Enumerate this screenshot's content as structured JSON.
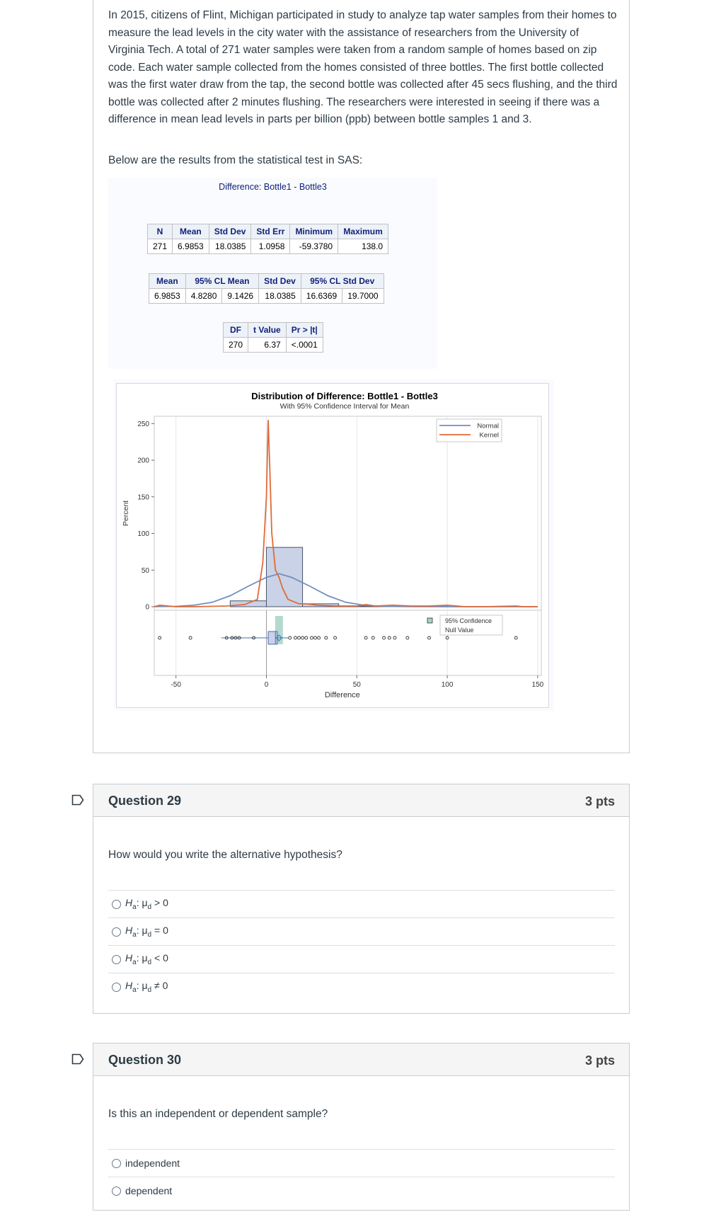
{
  "context": {
    "paragraph": "In 2015, citizens of Flint, Michigan participated in study to analyze tap water samples from their homes to measure the lead levels in the city water with the assistance of researchers from the University of Virginia Tech. A total of 271 water samples were taken from a random sample of homes based on zip code. Each water sample collected from the homes consisted of three bottles. The first bottle collected was the first water draw from the tap, the second bottle was collected after 45 secs flushing, and the third bottle was collected after 2 minutes flushing. The researchers were interested in seeing if there was a difference in mean lead levels in parts per billion (ppb) between bottle samples 1 and 3.",
    "lead_in": "Below are the results from the statistical test in SAS:"
  },
  "sas_output": {
    "title": "Difference: Bottle1 - Bottle3",
    "stats_table": {
      "headers": [
        "N",
        "Mean",
        "Std Dev",
        "Std Err",
        "Minimum",
        "Maximum"
      ],
      "row": [
        "271",
        "6.9853",
        "18.0385",
        "1.0958",
        "-59.3780",
        "138.0"
      ]
    },
    "ci_table": {
      "headers": [
        "Mean",
        "95% CL Mean",
        "Std Dev",
        "95% CL Std Dev"
      ],
      "row": [
        "6.9853",
        "4.8280",
        "9.1426",
        "18.0385",
        "16.6369",
        "19.7000"
      ]
    },
    "ttest_table": {
      "headers": [
        "DF",
        "t Value",
        "Pr > |t|"
      ],
      "row": [
        "270",
        "6.37",
        "<.0001"
      ]
    }
  },
  "chart_data": {
    "type": "bar",
    "title": "Distribution of Difference: Bottle1 - Bottle3",
    "subtitle": "With 95% Confidence Interval for Mean",
    "xlabel": "Difference",
    "ylabel": "Percent",
    "xlim": [
      -62,
      152
    ],
    "ylim": [
      0,
      260
    ],
    "x_ticks": [
      -50,
      0,
      50,
      100,
      150
    ],
    "y_ticks": [
      0,
      50,
      100,
      150,
      200,
      250
    ],
    "bins": [
      {
        "x0": -20,
        "x1": 0,
        "value": 8
      },
      {
        "x0": 0,
        "x1": 20,
        "value": 81
      },
      {
        "x0": 20,
        "x1": 40,
        "value": 4
      },
      {
        "x0": 40,
        "x1": 60,
        "value": 1
      },
      {
        "x0": 60,
        "x1": 80,
        "value": 0.5
      },
      {
        "x0": 80,
        "x1": 100,
        "value": 0.5
      }
    ],
    "series": [
      {
        "name": "Normal",
        "color": "#6f8fc0",
        "points": [
          [
            -62,
            0.2
          ],
          [
            -50,
            0.5
          ],
          [
            -40,
            2
          ],
          [
            -30,
            6
          ],
          [
            -20,
            15
          ],
          [
            -10,
            28
          ],
          [
            0,
            40
          ],
          [
            7,
            45
          ],
          [
            14,
            40
          ],
          [
            24,
            28
          ],
          [
            34,
            15
          ],
          [
            44,
            6
          ],
          [
            54,
            2
          ],
          [
            64,
            0.5
          ],
          [
            80,
            0.1
          ],
          [
            100,
            0
          ],
          [
            150,
            0
          ]
        ]
      },
      {
        "name": "Kernel",
        "color": "#e06a3a",
        "points": [
          [
            -62,
            0
          ],
          [
            -59,
            2
          ],
          [
            -50,
            0
          ],
          [
            -40,
            0
          ],
          [
            -22,
            1
          ],
          [
            -12,
            3
          ],
          [
            -5,
            10
          ],
          [
            -2,
            60
          ],
          [
            0,
            150
          ],
          [
            1,
            255
          ],
          [
            2,
            180
          ],
          [
            3,
            100
          ],
          [
            5,
            50
          ],
          [
            7,
            40
          ],
          [
            9,
            25
          ],
          [
            12,
            10
          ],
          [
            15,
            7
          ],
          [
            18,
            4
          ],
          [
            22,
            4
          ],
          [
            28,
            2
          ],
          [
            38,
            1
          ],
          [
            50,
            1
          ],
          [
            55,
            3
          ],
          [
            60,
            1
          ],
          [
            70,
            2
          ],
          [
            80,
            1
          ],
          [
            90,
            1
          ],
          [
            100,
            2
          ],
          [
            110,
            0
          ],
          [
            120,
            0
          ],
          [
            138,
            1
          ],
          [
            142,
            0
          ],
          [
            150,
            0
          ]
        ]
      }
    ],
    "ci_mean": [
      4.828,
      9.1426
    ],
    "boxplot": {
      "min": -25,
      "q1": 1,
      "median": 5,
      "q3": 6,
      "max": 12,
      "mean": 6.9853
    },
    "outliers": [
      -59,
      -42,
      -22,
      -19,
      -17,
      -15,
      -7,
      13,
      16,
      18,
      20,
      22,
      25,
      27,
      29,
      33,
      38,
      55,
      59,
      65,
      68,
      71,
      78,
      90,
      100,
      138
    ],
    "legend_top": [
      "Normal",
      "Kernel"
    ],
    "legend_bottom": [
      "95% Confidence",
      "Null Value"
    ],
    "colors": {
      "hist_fill": "#c9d2e6",
      "hist_stroke": "#4b5369",
      "ci_band": "#a8d2c6",
      "box": "#3f6fb5"
    }
  },
  "questions": [
    {
      "title": "Question 29",
      "points": "3 pts",
      "text": "How would you write the alternative hypothesis?",
      "answers": [
        {
          "h": "H",
          "a": "a",
          "mu": ": μ",
          "d": "d",
          "rest": " > 0"
        },
        {
          "h": "H",
          "a": "a",
          "mu": ": μ",
          "d": "d",
          "rest": " = 0"
        },
        {
          "h": "H",
          "a": "a",
          "mu": ": μ",
          "d": "d",
          "rest": " < 0"
        },
        {
          "h": "H",
          "a": "a",
          "mu": ": μ",
          "d": "d",
          "rest": " ≠ 0"
        }
      ]
    },
    {
      "title": "Question 30",
      "points": "3 pts",
      "text": "Is this an independent or dependent sample?",
      "answers": [
        "independent",
        "dependent"
      ]
    }
  ]
}
